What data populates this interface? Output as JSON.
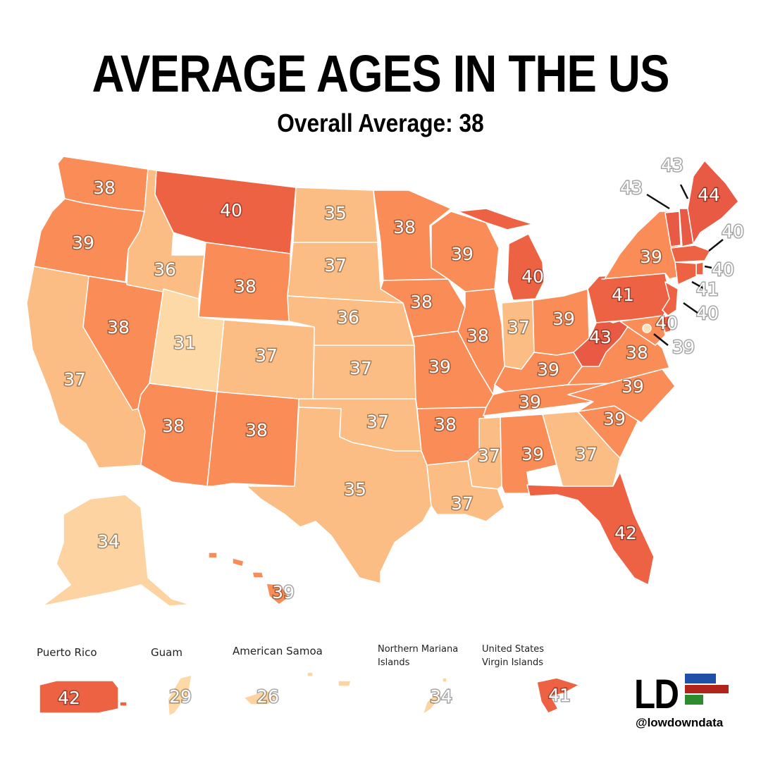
{
  "title": "AVERAGE AGES IN THE US",
  "subtitle": "Overall Average: 38",
  "colors": {
    "c31": "#fdd9a8",
    "c34": "#fcd3a1",
    "c35": "#fbbd84",
    "c36": "#fbbd84",
    "c37": "#fbbd84",
    "c38": "#f98c57",
    "c39": "#f98c57",
    "c40": "#ee6244",
    "c41": "#ee6244",
    "c42": "#ee6244",
    "c43": "#e85a43",
    "c44": "#e85a43",
    "dc": "#fde0b8"
  },
  "states": {
    "WA": "38",
    "OR": "39",
    "CA": "37",
    "NV": "38",
    "ID": "36",
    "MT": "40",
    "WY": "38",
    "UT": "31",
    "AZ": "38",
    "CO": "37",
    "NM": "38",
    "ND": "35",
    "SD": "37",
    "NE": "36",
    "KS": "37",
    "OK": "37",
    "TX": "35",
    "MN": "38",
    "IA": "38",
    "MO": "39",
    "AR": "38",
    "LA": "37",
    "WI": "39",
    "IL": "38",
    "MI": "40",
    "IN": "37",
    "OH": "39",
    "KY": "39",
    "TN": "39",
    "MS": "37",
    "AL": "39",
    "GA": "37",
    "FL": "42",
    "SC": "39",
    "NC": "39",
    "VA": "38",
    "WV": "43",
    "PA": "41",
    "NY": "39",
    "ME": "44",
    "VT": "43",
    "NH": "43",
    "MA": "40",
    "RI": "40",
    "CT": "41",
    "NJ": "40",
    "DE": "40",
    "MD": "39",
    "DC": "39",
    "AK": "34",
    "HI": "39"
  },
  "territories": [
    {
      "name": "Puerto Rico",
      "age": "42"
    },
    {
      "name": "Guam",
      "age": "29"
    },
    {
      "name": "American Samoa",
      "age": "26"
    },
    {
      "name": "Northern Mariana Islands",
      "age": "34"
    },
    {
      "name": "United States Virgin Islands",
      "age": "41"
    }
  ],
  "logo": {
    "text": "LD",
    "handle": "@lowdowndata",
    "colors": [
      "#1f4fa8",
      "#b0241c",
      "#2e8b2e"
    ]
  }
}
